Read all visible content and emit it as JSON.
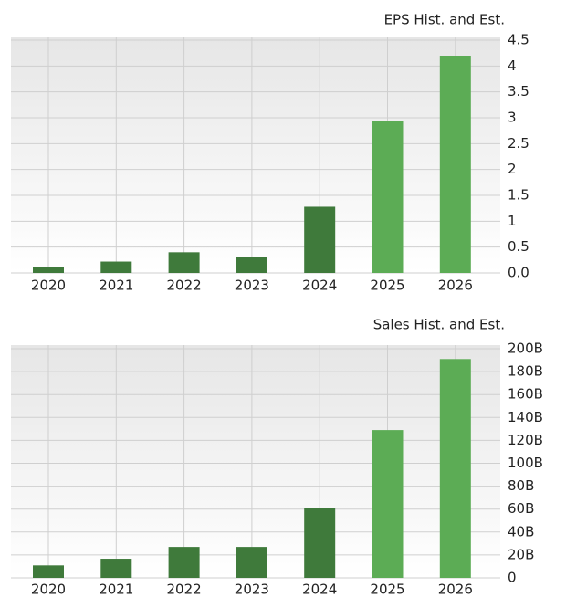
{
  "chart_data": [
    {
      "type": "bar",
      "title": "EPS Hist. and Est.",
      "categories": [
        "2020",
        "2021",
        "2022",
        "2023",
        "2024",
        "2025",
        "2026"
      ],
      "values": [
        0.11,
        0.22,
        0.4,
        0.3,
        1.28,
        2.93,
        4.2
      ],
      "colors": [
        "#3f7a3b",
        "#3f7a3b",
        "#3f7a3b",
        "#3f7a3b",
        "#3f7a3b",
        "#5cac55",
        "#5cac55"
      ],
      "ylim": [
        0,
        4.5
      ],
      "yticks": [
        {
          "value": 0,
          "label": "0.0"
        },
        0.5,
        1,
        1.5,
        2,
        2.5,
        3,
        3.5,
        4,
        4.5
      ],
      "grid": true
    },
    {
      "type": "bar",
      "title": "Sales Hist. and Est.",
      "categories": [
        "2020",
        "2021",
        "2022",
        "2023",
        "2024",
        "2025",
        "2026"
      ],
      "values": [
        10.9,
        16.7,
        27,
        27,
        61,
        129,
        191
      ],
      "colors": [
        "#3f7a3b",
        "#3f7a3b",
        "#3f7a3b",
        "#3f7a3b",
        "#3f7a3b",
        "#5cac55",
        "#5cac55"
      ],
      "ylim": [
        0,
        200
      ],
      "yticks": [
        0,
        {
          "value": 20,
          "label": "20B"
        },
        {
          "value": 40,
          "label": "40B"
        },
        {
          "value": 60,
          "label": "60B"
        },
        {
          "value": 80,
          "label": "80B"
        },
        {
          "value": 100,
          "label": "100B"
        },
        {
          "value": 120,
          "label": "120B"
        },
        {
          "value": 140,
          "label": "140B"
        },
        {
          "value": 160,
          "label": "160B"
        },
        {
          "value": 180,
          "label": "180B"
        },
        {
          "value": 200,
          "label": "200B"
        }
      ],
      "grid": true
    }
  ]
}
